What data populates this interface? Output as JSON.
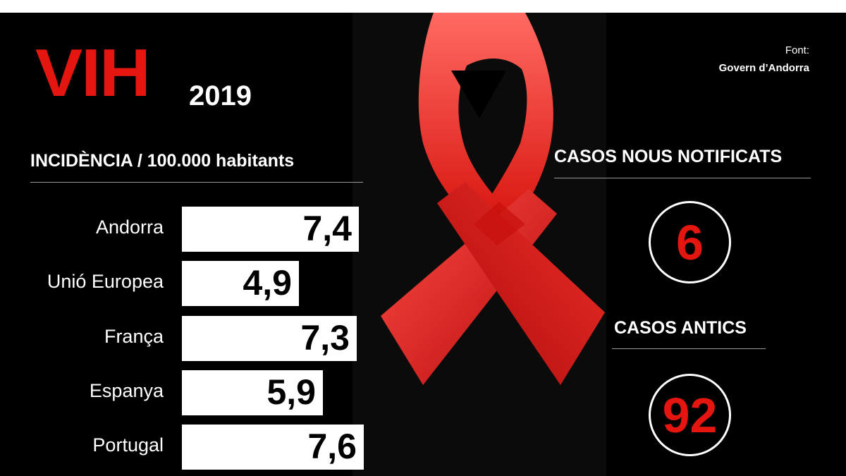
{
  "title": "VIH",
  "year": "2019",
  "source": {
    "label": "Font:",
    "name": "Govern d’Andorra"
  },
  "colors": {
    "accent": "#e4160f",
    "background": "#000000",
    "bar": "#ffffff"
  },
  "chart_data": {
    "type": "bar",
    "title": "INCIDÈNCIA / 100.000 habitants",
    "orientation": "horizontal",
    "categories": [
      "Andorra",
      "Unió Europea",
      "França",
      "Espanya",
      "Portugal"
    ],
    "values": [
      7.4,
      4.9,
      7.3,
      5.9,
      7.6
    ],
    "value_labels": [
      "7,4",
      "4,9",
      "7,3",
      "5,9",
      "7,6"
    ],
    "xlim": [
      0,
      7.6
    ]
  },
  "stats": [
    {
      "label": "CASOS NOUS NOTIFICATS",
      "value": "6"
    },
    {
      "label": "CASOS ANTICS",
      "value": "92"
    }
  ],
  "decoration": {
    "icon": "red-ribbon-icon"
  }
}
